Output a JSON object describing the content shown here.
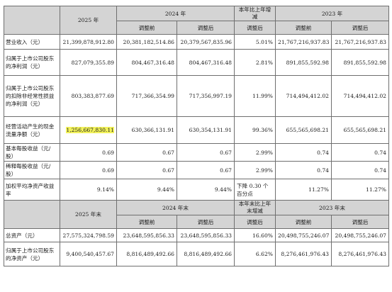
{
  "header1": {
    "y2025": "2025 年",
    "y2024": "2024 年",
    "change": "本年比上年增减",
    "y2023": "2023 年"
  },
  "sub1": {
    "before": "调整前",
    "after": "调整后",
    "after2": "调整后",
    "before2023": "调整前",
    "after2023": "调整后"
  },
  "rows": [
    {
      "label": "营业收入（元）",
      "v2025": "21,399,878,912.80",
      "b2024": "20,381,182,514.86",
      "a2024": "20,379,567,835.96",
      "chg": "5.01%",
      "b2023": "21,767,216,937.83",
      "a2023": "21,767,216,937.83"
    },
    {
      "label": "归属于上市公司股东的净利润（元）",
      "v2025": "827,079,355.89",
      "b2024": "804,467,316.48",
      "a2024": "804,467,316.48",
      "chg": "2.81%",
      "b2023": "891,855,592.98",
      "a2023": "891,855,592.98"
    },
    {
      "label": "归属于上市公司股东的扣除非经常性损益的净利润（元）",
      "v2025": "803,383,877.69",
      "b2024": "717,366,354.99",
      "a2024": "717,356,997.19",
      "chg": "11.99%",
      "b2023": "714,494,412.02",
      "a2023": "714,494,412.02"
    },
    {
      "label": "经营活动产生的现金流量净额（元）",
      "v2025": "1,256,667,830.11",
      "b2024": "630,366,131.91",
      "a2024": "630,354,131.91",
      "chg": "99.36%",
      "b2023": "655,565,698.21",
      "a2023": "655,565,698.21"
    },
    {
      "label": "基本每股收益（元/股）",
      "v2025": "0.69",
      "b2024": "0.67",
      "a2024": "0.67",
      "chg": "2.99%",
      "b2023": "0.74",
      "a2023": "0.74"
    },
    {
      "label": "稀释每股收益（元/股）",
      "v2025": "0.69",
      "b2024": "0.67",
      "a2024": "0.67",
      "chg": "2.99%",
      "b2023": "0.74",
      "a2023": "0.74"
    },
    {
      "label": "加权平均净资产收益率",
      "v2025": "9.14%",
      "b2024": "9.44%",
      "a2024": "9.44%",
      "chg": "下降 0.30 个百分点",
      "b2023": "11.27%",
      "a2023": "11.27%"
    }
  ],
  "header2": {
    "y2025": "2025 年末",
    "y2024": "2024 年末",
    "change": "本年末比上年末增减",
    "y2023": "2023 年末"
  },
  "sub2": {
    "before": "调整前",
    "after": "调整后",
    "after2": "调整后",
    "before2023": "调整前",
    "after2023": "调整后"
  },
  "rows2": [
    {
      "label": "总资产（元）",
      "v2025": "27,575,324,798.59",
      "b2024": "23,648,595,856.33",
      "a2024": "23,648,595,856.33",
      "chg": "16.60%",
      "b2023": "20,498,755,246.07",
      "a2023": "20,498,755,246.07"
    },
    {
      "label": "归属于上市公司股东的净资产（元）",
      "v2025": "9,400,540,457.67",
      "b2024": "8,816,489,492.66",
      "a2024": "8,816,489,492.66",
      "chg": "6.62%",
      "b2023": "8,276,461,976.43",
      "a2023": "8,276,461,976.43"
    }
  ],
  "colors": {
    "header_bg": "#d4d4d4",
    "highlight": "#f2f25a",
    "border": "#6f6f6f"
  }
}
